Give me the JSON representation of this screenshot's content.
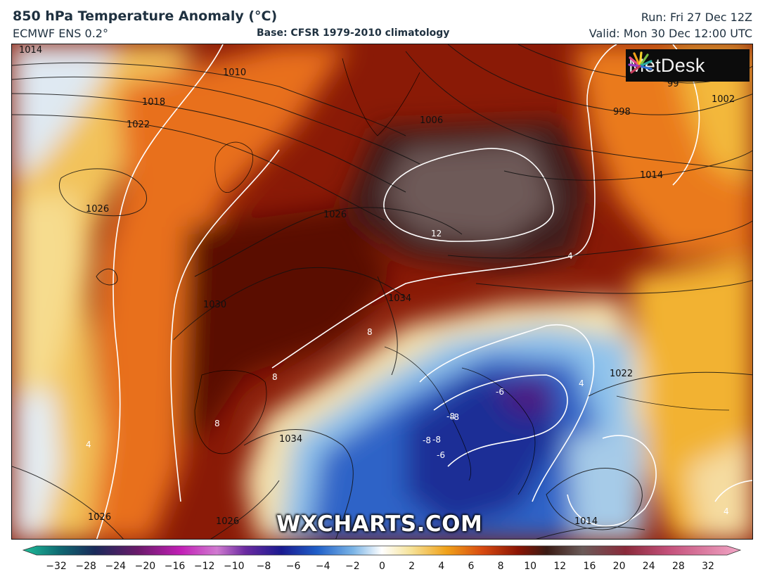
{
  "header": {
    "title": "850 hPa Temperature Anomaly (°C)",
    "model": "ECMWF ENS 0.2°",
    "base": "Base: CFSR 1979-2010 climatology",
    "run": "Run: Fri 27 Dec 12Z",
    "valid": "Valid: Mon 30 Dec 12:00 UTC"
  },
  "logo": {
    "name": "metdesk-logo",
    "text": "MetDesk"
  },
  "watermark": "WXCHARTS.COM",
  "isobar_labels": [
    "1014",
    "1010",
    "1018",
    "1022",
    "1026",
    "1006",
    "998",
    "1002",
    "1014",
    "1026",
    "1030",
    "1034",
    "1034",
    "1022",
    "1014",
    "1026",
    "1026",
    "99"
  ],
  "anomaly_labels": [
    "12",
    "4",
    "8",
    "8",
    "8",
    "4",
    "-8",
    "-6",
    "-8",
    "-8",
    "-8",
    "-6",
    "4",
    "4"
  ],
  "colorbar": {
    "ticks": [
      "−32",
      "−28",
      "−24",
      "−20",
      "−16",
      "−12",
      "−10",
      "−8",
      "−6",
      "−4",
      "−2",
      "0",
      "2",
      "4",
      "6",
      "8",
      "10",
      "12",
      "16",
      "20",
      "24",
      "28",
      "32"
    ],
    "colors": {
      "very_cold": "#1fbf9a",
      "cold": "#3a0a6e",
      "blue": "#1b3fb5",
      "light_blue": "#a8d0ef",
      "neutral": "#ffffff",
      "warm": "#f0a21a",
      "hot": "#8a1404",
      "very_hot": "#3a2a2a",
      "extreme": "#f2a6c6"
    }
  }
}
